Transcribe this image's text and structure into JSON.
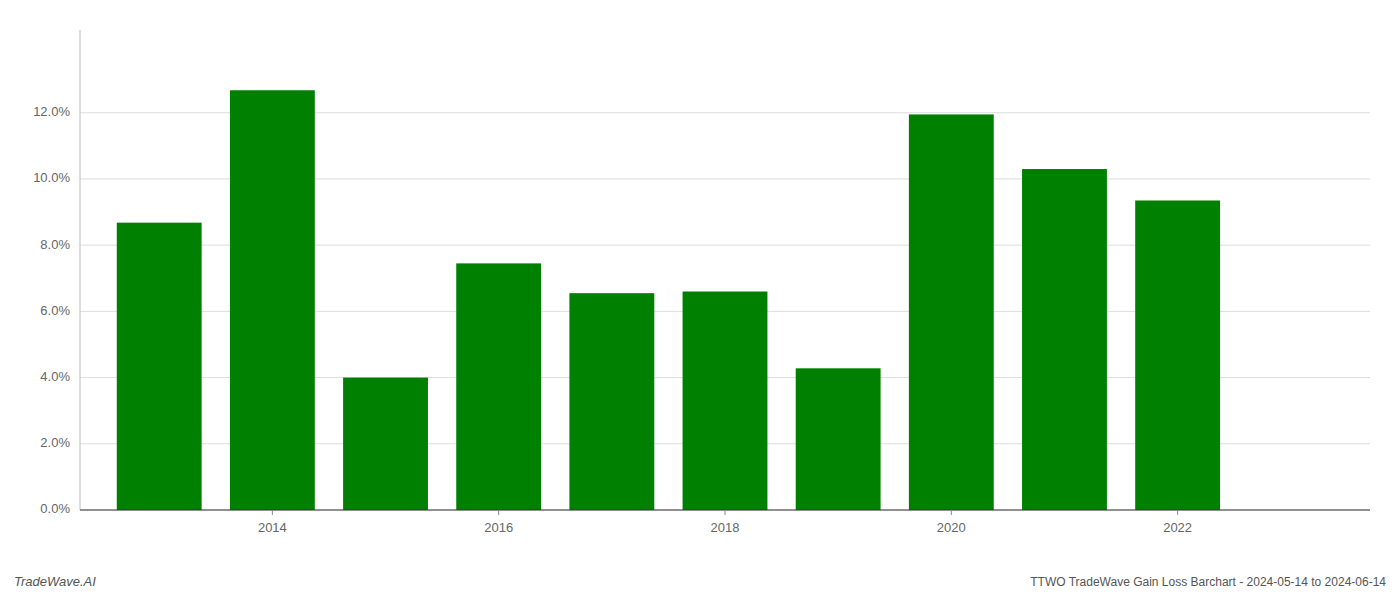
{
  "chart_data": {
    "type": "bar",
    "title": "TTWO TradeWave Gain Loss Barchart - 2024-05-14 to 2024-06-14",
    "annotations": [
      {
        "text": "TradeWave.AI"
      }
    ],
    "x": [
      2013,
      2014,
      2015,
      2016,
      2017,
      2018,
      2019,
      2020,
      2021,
      2022
    ],
    "values": [
      0.0868,
      0.1268,
      0.04,
      0.0745,
      0.0655,
      0.066,
      0.0428,
      0.1195,
      0.103,
      0.0935
    ],
    "color": "#008000",
    "xlim": [
      2012.3,
      2023.7
    ],
    "xticks": [
      2014,
      2016,
      2018,
      2020,
      2022
    ],
    "ylim": [
      0.0,
      0.145
    ],
    "yticks": [
      {
        "value": 0.0,
        "label": "0.0%"
      },
      {
        "value": 0.02,
        "label": "2.0%"
      },
      {
        "value": 0.04,
        "label": "4.0%"
      },
      {
        "value": 0.06,
        "label": "6.0%"
      },
      {
        "value": 0.08,
        "label": "8.0%"
      },
      {
        "value": 0.1,
        "label": "10.0%"
      },
      {
        "value": 0.12,
        "label": "12.0%"
      }
    ],
    "grid": true
  }
}
